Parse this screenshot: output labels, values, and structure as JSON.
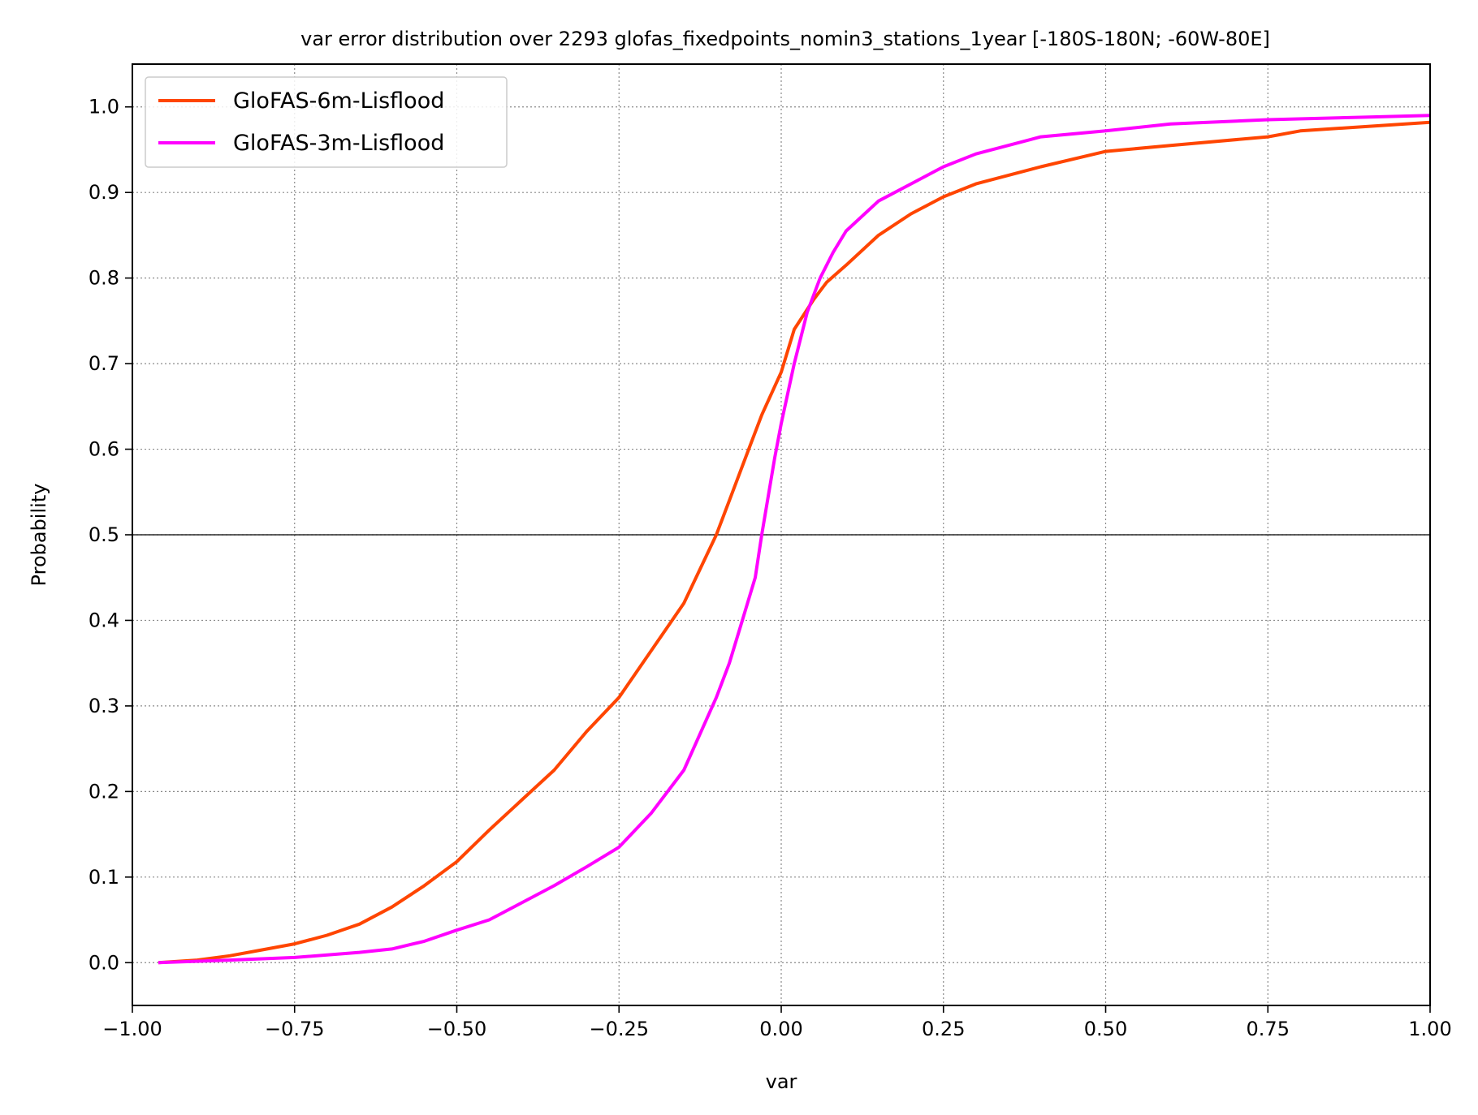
{
  "chart_data": {
    "type": "line",
    "title": "var error distribution over 2293 glofas_fixedpoints_nomin3_stations_1year [-180S-180N; -60W-80E]",
    "xlabel": "var",
    "ylabel": "Probability",
    "xlim": [
      -1.0,
      1.0
    ],
    "ylim": [
      -0.05,
      1.05
    ],
    "xticks": [
      -1.0,
      -0.75,
      -0.5,
      -0.25,
      0.0,
      0.25,
      0.5,
      0.75,
      1.0
    ],
    "xtick_labels": [
      "−1.00",
      "−0.75",
      "−0.50",
      "−0.25",
      "0.00",
      "0.25",
      "0.50",
      "0.75",
      "1.00"
    ],
    "yticks": [
      0.0,
      0.1,
      0.2,
      0.3,
      0.4,
      0.5,
      0.6,
      0.7,
      0.8,
      0.9,
      1.0
    ],
    "ytick_labels": [
      "0.0",
      "0.1",
      "0.2",
      "0.3",
      "0.4",
      "0.5",
      "0.6",
      "0.7",
      "0.8",
      "0.9",
      "1.0"
    ],
    "grid": true,
    "reference_line_y": 0.5,
    "legend": {
      "position": "top-left"
    },
    "series": [
      {
        "name": "GloFAS-6m-Lisflood",
        "color": "#ff4500",
        "x": [
          -0.96,
          -0.9,
          -0.85,
          -0.8,
          -0.75,
          -0.7,
          -0.65,
          -0.6,
          -0.55,
          -0.5,
          -0.45,
          -0.4,
          -0.35,
          -0.3,
          -0.25,
          -0.2,
          -0.15,
          -0.1,
          -0.08,
          -0.05,
          -0.03,
          0.0,
          0.02,
          0.05,
          0.07,
          0.1,
          0.15,
          0.2,
          0.25,
          0.3,
          0.4,
          0.5,
          0.6,
          0.75,
          0.8,
          0.9,
          1.0
        ],
        "y": [
          0.0,
          0.003,
          0.008,
          0.015,
          0.022,
          0.032,
          0.045,
          0.065,
          0.09,
          0.118,
          0.155,
          0.19,
          0.225,
          0.27,
          0.31,
          0.365,
          0.42,
          0.5,
          0.54,
          0.6,
          0.64,
          0.69,
          0.74,
          0.775,
          0.795,
          0.815,
          0.85,
          0.875,
          0.895,
          0.91,
          0.93,
          0.948,
          0.955,
          0.965,
          0.972,
          0.977,
          0.982
        ]
      },
      {
        "name": "GloFAS-3m-Lisflood",
        "color": "#ff00ff",
        "x": [
          -0.96,
          -0.85,
          -0.75,
          -0.65,
          -0.6,
          -0.55,
          -0.5,
          -0.45,
          -0.4,
          -0.35,
          -0.3,
          -0.25,
          -0.2,
          -0.15,
          -0.1,
          -0.08,
          -0.06,
          -0.04,
          -0.03,
          -0.02,
          -0.01,
          0.0,
          0.02,
          0.04,
          0.06,
          0.08,
          0.1,
          0.15,
          0.2,
          0.25,
          0.3,
          0.4,
          0.5,
          0.6,
          0.75,
          0.9,
          1.0
        ],
        "y": [
          0.0,
          0.003,
          0.006,
          0.012,
          0.016,
          0.025,
          0.038,
          0.05,
          0.07,
          0.09,
          0.112,
          0.135,
          0.175,
          0.225,
          0.31,
          0.35,
          0.4,
          0.45,
          0.5,
          0.545,
          0.59,
          0.63,
          0.7,
          0.76,
          0.8,
          0.83,
          0.855,
          0.89,
          0.91,
          0.93,
          0.945,
          0.965,
          0.972,
          0.98,
          0.985,
          0.988,
          0.99
        ]
      }
    ]
  }
}
